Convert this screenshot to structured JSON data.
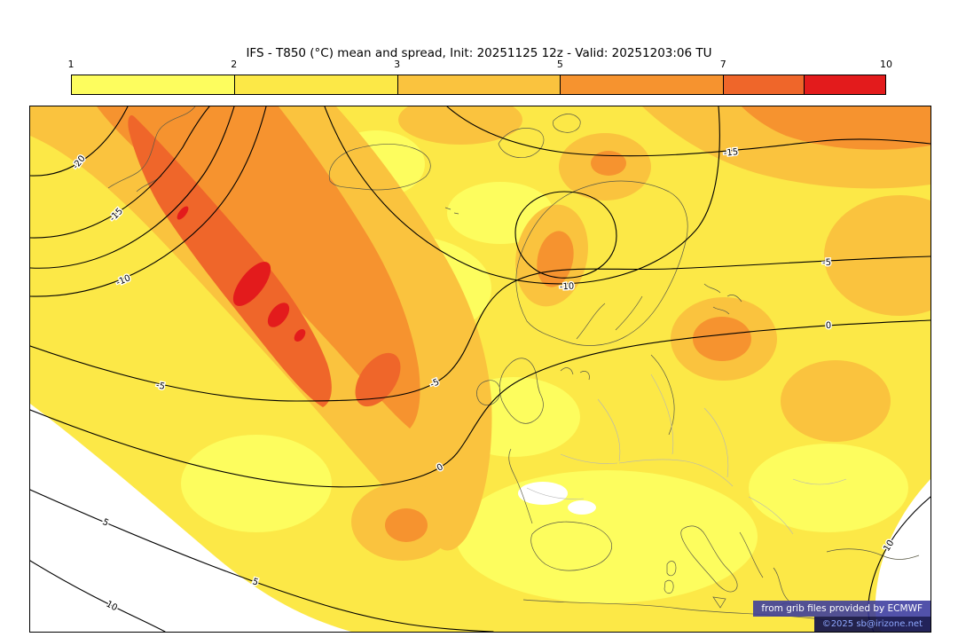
{
  "header": {
    "title": "IFS - T850 (°C) mean and spread, Init: 20251125 12z - Valid: 20251203:06 TU"
  },
  "colorbar": {
    "ticks": [
      "1",
      "2",
      "3",
      "5",
      "7",
      "10"
    ],
    "segments": [
      {
        "color": "#fdfd5e",
        "width_pct": 20
      },
      {
        "color": "#fce847",
        "width_pct": 20
      },
      {
        "color": "#fac33e",
        "width_pct": 20
      },
      {
        "color": "#f6932f",
        "width_pct": 20
      },
      {
        "color": "#ef662a",
        "width_pct": 10
      },
      {
        "color": "#e31b1c",
        "width_pct": 10
      }
    ]
  },
  "map": {
    "contour_labels": [
      "-20",
      "-15",
      "-10",
      "-10",
      "-15",
      "-5",
      "-5",
      "-5",
      "0",
      "0",
      "5",
      "5",
      "10",
      "10"
    ],
    "isotherm_values_c": [
      -20,
      -15,
      -10,
      -5,
      0,
      5,
      10
    ],
    "attribution_line1": "from grib files provided by ECMWF",
    "attribution_line2": "©2025 sb@irizone.net"
  }
}
